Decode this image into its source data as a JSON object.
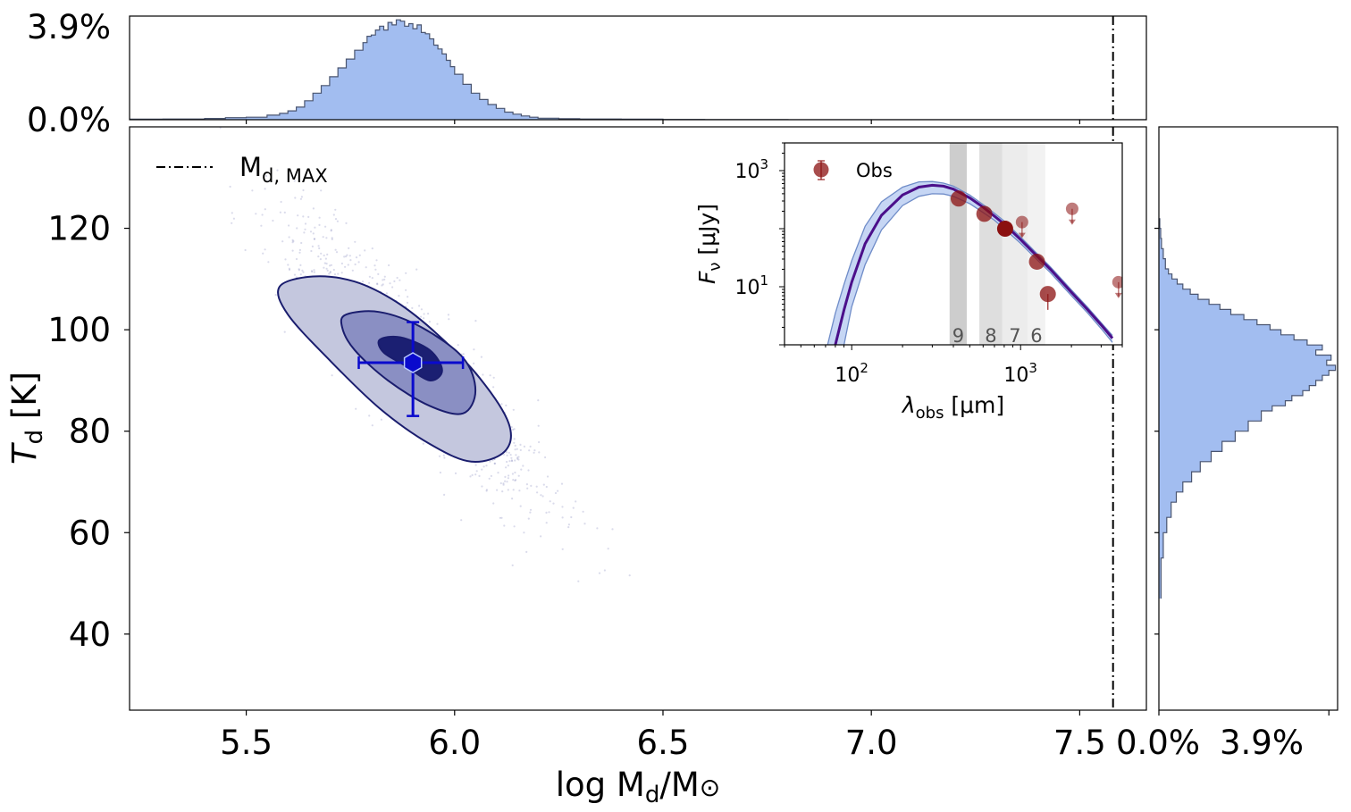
{
  "chart_data": [
    {
      "panel": "top-histogram",
      "type": "histogram",
      "xlabel": "",
      "ylabel": "",
      "yticks": [
        "0.0%",
        "3.9%"
      ],
      "ylim": [
        0,
        4.1
      ],
      "xlim": [
        5.22,
        7.66
      ],
      "fill_color": "#a2bdf0",
      "edge_color": "#4a5570",
      "bins_x": [
        5.22,
        5.3,
        5.4,
        5.45,
        5.5,
        5.55,
        5.58,
        5.6,
        5.62,
        5.64,
        5.66,
        5.68,
        5.7,
        5.72,
        5.74,
        5.76,
        5.78,
        5.79,
        5.8,
        5.81,
        5.82,
        5.83,
        5.84,
        5.85,
        5.86,
        5.87,
        5.88,
        5.89,
        5.9,
        5.91,
        5.92,
        5.93,
        5.94,
        5.95,
        5.96,
        5.97,
        5.98,
        5.99,
        6.0,
        6.02,
        6.04,
        6.06,
        6.08,
        6.1,
        6.12,
        6.14,
        6.16,
        6.18,
        6.2,
        6.25,
        6.3,
        6.4,
        6.5,
        6.6,
        6.8,
        7.66
      ],
      "bins_pct": [
        0.02,
        0.03,
        0.05,
        0.08,
        0.1,
        0.18,
        0.25,
        0.35,
        0.5,
        0.75,
        1.05,
        1.35,
        1.7,
        2.05,
        2.4,
        2.75,
        3.05,
        3.3,
        3.35,
        3.55,
        3.7,
        3.55,
        3.85,
        3.75,
        3.95,
        3.9,
        3.7,
        3.8,
        3.6,
        3.75,
        3.45,
        3.4,
        3.2,
        2.95,
        2.8,
        2.6,
        2.35,
        2.1,
        1.8,
        1.4,
        1.05,
        0.8,
        0.6,
        0.45,
        0.3,
        0.22,
        0.15,
        0.1,
        0.06,
        0.04,
        0.03,
        0.02,
        0.01,
        0.005,
        0.0
      ]
    },
    {
      "panel": "main-contour",
      "type": "scatter",
      "xlabel": "log  M",
      "xlabel_sub": "d",
      "xlabel_tail": "/M",
      "xlabel_sun": "⊙",
      "ylabel": "T",
      "ylabel_sub": "d",
      "ylabel_tail": " [K]",
      "xlim": [
        5.22,
        7.66
      ],
      "ylim": [
        25,
        140
      ],
      "xticks": [
        5.5,
        6.0,
        6.5,
        7.0,
        7.5
      ],
      "xtick_labels": [
        "5.5",
        "6.0",
        "6.5",
        "7.0",
        "7.5"
      ],
      "yticks": [
        40,
        60,
        80,
        100,
        120
      ],
      "ytick_labels": [
        "40",
        "60",
        "80",
        "100",
        "120"
      ],
      "vline_x": 7.58,
      "vline_label": "M",
      "vline_label_sub": "d, MAX",
      "best_fit": {
        "x": 5.9,
        "y": 93.5,
        "xerr": [
          0.13,
          0.12
        ],
        "yerr": [
          10.5,
          8.0
        ]
      },
      "contour_color": "#1a1d6e",
      "marker_color": "#0a0acd",
      "contour_levels": [
        {
          "level": "outer",
          "fill": "#c4c7de",
          "points": [
            [
              5.58,
              108.5
            ],
            [
              5.66,
              110.5
            ],
            [
              5.76,
              109.5
            ],
            [
              5.86,
              105.5
            ],
            [
              5.96,
              99.0
            ],
            [
              6.06,
              90.5
            ],
            [
              6.13,
              81.5
            ],
            [
              6.12,
              76.0
            ],
            [
              6.04,
              74.0
            ],
            [
              5.94,
              77.5
            ],
            [
              5.82,
              84.5
            ],
            [
              5.7,
              94.0
            ],
            [
              5.6,
              103.0
            ]
          ]
        },
        {
          "level": "middle",
          "fill": "#8a8fc3",
          "points": [
            [
              5.74,
              103.0
            ],
            [
              5.82,
              103.5
            ],
            [
              5.92,
              100.5
            ],
            [
              6.02,
              94.5
            ],
            [
              6.05,
              88.0
            ],
            [
              6.02,
              83.5
            ],
            [
              5.94,
              85.0
            ],
            [
              5.84,
              90.0
            ],
            [
              5.76,
              96.0
            ],
            [
              5.73,
              100.5
            ]
          ]
        },
        {
          "level": "inner",
          "fill": "#1b1f72",
          "points": [
            [
              5.82,
              98.0
            ],
            [
              5.87,
              98.5
            ],
            [
              5.94,
              96.0
            ],
            [
              5.97,
              92.0
            ],
            [
              5.94,
              90.0
            ],
            [
              5.88,
              93.0
            ],
            [
              5.83,
              95.5
            ]
          ]
        }
      ]
    },
    {
      "panel": "right-histogram",
      "type": "histogram",
      "orientation": "horizontal",
      "xticks": [
        "0.0%",
        "3.9%"
      ],
      "xlim": [
        0,
        4.1
      ],
      "ylim": [
        25,
        140
      ],
      "fill_color": "#a2bdf0",
      "edge_color": "#4a5570",
      "bins_y": [
        47,
        55,
        60,
        63,
        66,
        68,
        70,
        72,
        74,
        76,
        78,
        80,
        82,
        84,
        85,
        86,
        87,
        88,
        89,
        90,
        91,
        92,
        93,
        94,
        95,
        96,
        97,
        98,
        99,
        100,
        101,
        102,
        103,
        104,
        105,
        106,
        107,
        108,
        109,
        110,
        111,
        112,
        114,
        116,
        118,
        120,
        122
      ],
      "bins_pct": [
        0.05,
        0.1,
        0.18,
        0.28,
        0.4,
        0.55,
        0.75,
        0.95,
        1.2,
        1.45,
        1.75,
        2.05,
        2.35,
        2.6,
        2.9,
        3.05,
        3.3,
        3.45,
        3.6,
        3.75,
        3.9,
        4.05,
        3.85,
        3.95,
        3.6,
        3.75,
        3.4,
        3.1,
        2.8,
        2.55,
        2.25,
        1.95,
        1.65,
        1.4,
        1.15,
        0.9,
        0.72,
        0.55,
        0.42,
        0.3,
        0.22,
        0.15,
        0.1,
        0.06,
        0.04,
        0.02
      ]
    },
    {
      "panel": "inset-sed",
      "type": "line",
      "xscale": "log",
      "yscale": "log",
      "xlabel": "λ",
      "xlabel_sub": "obs",
      "xlabel_tail": " [μm]",
      "ylabel": "F",
      "ylabel_sub": "ν",
      "ylabel_tail": " [μJy]",
      "xlim": [
        40,
        4000
      ],
      "ylim": [
        1,
        3000
      ],
      "xticks": [
        100,
        1000
      ],
      "xtick_base": "10",
      "xtick_exps": [
        "2",
        "3"
      ],
      "yticks": [
        10,
        1000
      ],
      "ytick_base": "10",
      "ytick_exps": [
        "1",
        "3"
      ],
      "legend": "Obs",
      "model_color": "#4b0f8a",
      "band_fill": "#c6d6f4",
      "bands": [
        {
          "label": "9",
          "range": [
            380,
            480
          ],
          "fill": "#cdcdcd"
        },
        {
          "label": "8",
          "range": [
            570,
            780
          ],
          "fill": "#dedede"
        },
        {
          "label": "7",
          "range": [
            780,
            1100
          ],
          "fill": "#ececec"
        },
        {
          "label": "6",
          "range": [
            1100,
            1400
          ],
          "fill": "#f2f2f2"
        }
      ],
      "model": {
        "x": [
          80,
          90,
          100,
          120,
          150,
          200,
          250,
          300,
          350,
          400,
          500,
          600,
          700,
          800,
          1000,
          1200,
          1500,
          2000,
          2500,
          3000,
          3500
        ],
        "y": [
          1.0,
          4.0,
          12,
          55,
          170,
          380,
          520,
          560,
          540,
          480,
          340,
          235,
          165,
          120,
          65,
          38,
          20,
          8.0,
          4.0,
          2.2,
          1.3
        ]
      },
      "model_low": {
        "x": [
          90,
          100,
          120,
          150,
          200,
          250,
          300,
          350,
          400,
          500,
          600,
          700,
          800,
          1000,
          1200,
          1500,
          2000,
          2500,
          3000,
          3500
        ],
        "y": [
          1.0,
          4.5,
          24,
          95,
          250,
          360,
          400,
          395,
          360,
          270,
          190,
          140,
          100,
          56,
          33,
          17.5,
          7.0,
          3.5,
          1.9,
          1.1
        ]
      },
      "model_high": {
        "x": [
          72,
          80,
          90,
          100,
          120,
          150,
          200,
          250,
          300,
          350,
          400,
          500,
          600,
          700,
          800,
          1000,
          1200,
          1500,
          2000,
          2500,
          3000,
          3500
        ],
        "y": [
          1.0,
          3.5,
          11,
          28,
          110,
          290,
          520,
          640,
          650,
          610,
          540,
          380,
          260,
          185,
          135,
          72,
          42,
          22,
          8.8,
          4.4,
          2.4,
          1.45
        ]
      },
      "points": [
        {
          "x": 430,
          "y": 330,
          "type": "detection",
          "alpha": 0.75
        },
        {
          "x": 610,
          "y": 180,
          "type": "detection",
          "alpha": 0.75
        },
        {
          "x": 810,
          "y": 100,
          "type": "detection",
          "alpha": 1.0
        },
        {
          "x": 1250,
          "y": 27,
          "type": "detection",
          "alpha": 0.75
        },
        {
          "x": 1450,
          "y": 7.5,
          "type": "detection",
          "alpha": 0.75,
          "yerr": [
            3.5,
            0
          ]
        },
        {
          "x": 1020,
          "y": 130,
          "type": "upper-limit",
          "alpha": 0.55
        },
        {
          "x": 2020,
          "y": 220,
          "type": "upper-limit",
          "alpha": 0.55
        },
        {
          "x": 3800,
          "y": 12,
          "type": "upper-limit",
          "alpha": 0.55
        }
      ],
      "point_color": "#8b1010"
    }
  ]
}
